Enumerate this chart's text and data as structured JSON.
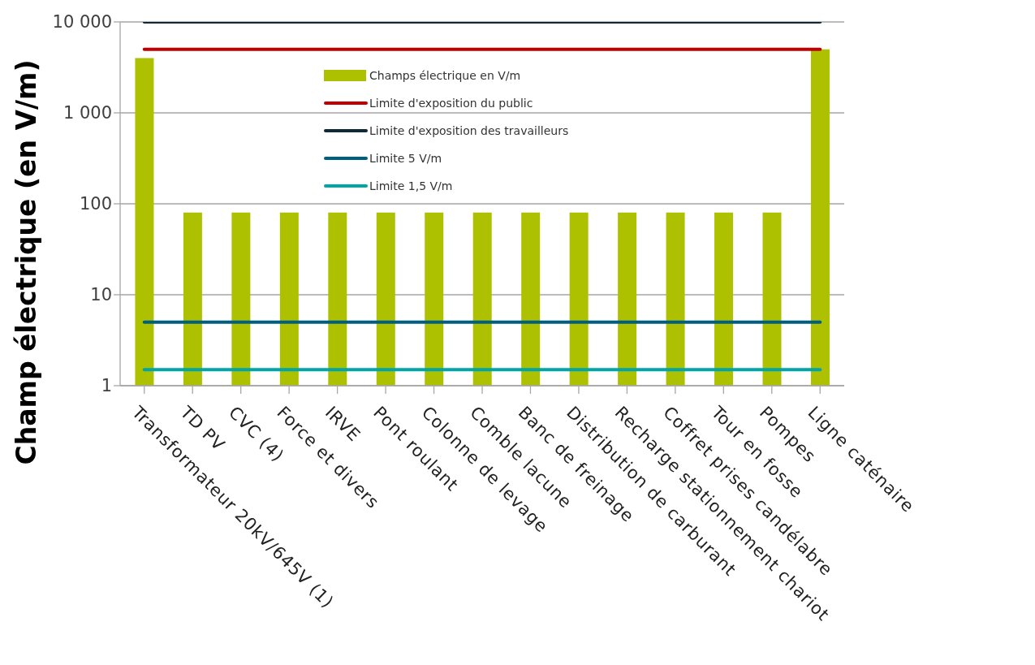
{
  "chart_data": {
    "type": "bar",
    "ylabel": "Champ électrique (en V/m)",
    "categories": [
      "Transformateur 20kV/645V (1)",
      "TD PV",
      "CVC (4)",
      "Force et divers",
      "IRVE",
      "Pont roulant",
      "Colonne de levage",
      "Comble lacune",
      "Banc de freinage",
      "Distribution de carburant",
      "Recharge stationnement chariot",
      "Coffret prises candélabre",
      "Tour en fosse",
      "Pompes",
      "Ligne caténaire"
    ],
    "series": [
      {
        "name": "Champs électrique en V/m",
        "color": "#adc100",
        "values": [
          4000,
          80,
          80,
          80,
          80,
          80,
          80,
          80,
          80,
          80,
          80,
          80,
          80,
          80,
          5000
        ]
      },
      {
        "name": "Limite d'exposition du public",
        "type": "line",
        "color": "#c00000",
        "values": [
          5000,
          5000,
          5000,
          5000,
          5000,
          5000,
          5000,
          5000,
          5000,
          5000,
          5000,
          5000,
          5000,
          5000,
          5000
        ]
      },
      {
        "name": "Limite d'exposition des travailleurs",
        "type": "line",
        "color": "#0e2a38",
        "values": [
          10000,
          10000,
          10000,
          10000,
          10000,
          10000,
          10000,
          10000,
          10000,
          10000,
          10000,
          10000,
          10000,
          10000,
          10000
        ]
      },
      {
        "name": "Limite 5 V/m",
        "type": "line",
        "color": "#005e80",
        "values": [
          5,
          5,
          5,
          5,
          5,
          5,
          5,
          5,
          5,
          5,
          5,
          5,
          5,
          5,
          5
        ]
      },
      {
        "name": "Limite 1,5 V/m",
        "type": "line",
        "color": "#00a5a8",
        "values": [
          1.5,
          1.5,
          1.5,
          1.5,
          1.5,
          1.5,
          1.5,
          1.5,
          1.5,
          1.5,
          1.5,
          1.5,
          1.5,
          1.5,
          1.5
        ]
      }
    ],
    "log": true,
    "ylim": [
      1,
      10000
    ],
    "yticks": [
      1,
      10,
      100,
      {
        "value": 1000,
        "label": "1 000"
      },
      {
        "value": 10000,
        "label": "10 000"
      }
    ],
    "grid": "y",
    "legend": "top"
  }
}
